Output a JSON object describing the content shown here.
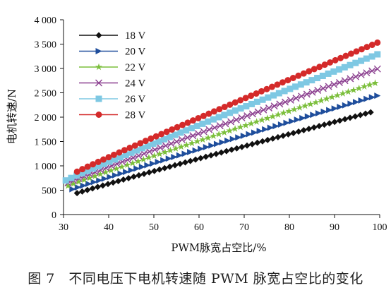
{
  "caption": "图 7　不同电压下电机转速随 PWM 脉宽占空比的变化",
  "chart_data": {
    "type": "line",
    "title": "",
    "xlabel": "PWM脉宽占空比/%",
    "ylabel": "电机转速/N",
    "xlim": [
      30,
      100
    ],
    "ylim": [
      0,
      4000
    ],
    "xticks": [
      "30",
      "40",
      "50",
      "60",
      "70",
      "80",
      "90",
      "100"
    ],
    "yticks": [
      "0",
      "500",
      "1 000",
      "1 500",
      "2 000",
      "2 500",
      "3 000",
      "3 500",
      "4 000"
    ],
    "grid": false,
    "legend_position": "top-left",
    "series": [
      {
        "name": "18 V",
        "color": "#111111",
        "marker": "diamond",
        "x_start": 33,
        "y_start": 440,
        "x_end": 98,
        "y_end": 2100
      },
      {
        "name": "20 V",
        "color": "#1f4e9c",
        "marker": "triangle-right",
        "x_start": 32,
        "y_start": 520,
        "x_end": 99.5,
        "y_end": 2440
      },
      {
        "name": "22 V",
        "color": "#7cbf3c",
        "marker": "star",
        "x_start": 31,
        "y_start": 590,
        "x_end": 99,
        "y_end": 2700
      },
      {
        "name": "24 V",
        "color": "#8b3f8f",
        "marker": "x",
        "x_start": 31,
        "y_start": 650,
        "x_end": 99.5,
        "y_end": 2990
      },
      {
        "name": "26 V",
        "color": "#7ec8e3",
        "marker": "square",
        "x_start": 30.5,
        "y_start": 700,
        "x_end": 99.5,
        "y_end": 3290
      },
      {
        "name": "28 V",
        "color": "#d42a2a",
        "marker": "circle",
        "x_start": 33,
        "y_start": 880,
        "x_end": 99.5,
        "y_end": 3530
      }
    ],
    "points_per_series": 58
  }
}
